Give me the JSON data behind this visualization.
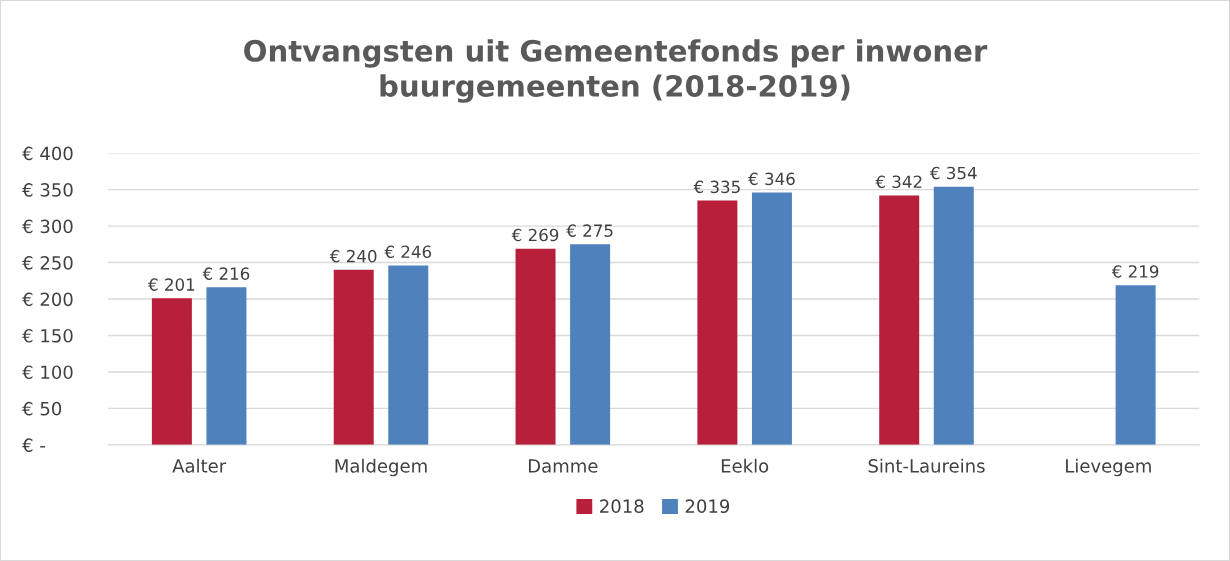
{
  "chart_data": {
    "type": "bar",
    "title": "Ontvangsten uit Gemeentefonds per inwoner\nbuurgemeenten (2018-2019)",
    "categories": [
      "Aalter",
      "Maldegem",
      "Damme",
      "Eeklo",
      "Sint-Laureins",
      "Lievegem"
    ],
    "series": [
      {
        "name": "2018",
        "color": "#b81f3a",
        "values": [
          201,
          240,
          269,
          335,
          342,
          null
        ],
        "value_labels": [
          "€ 201",
          "€ 240",
          "€ 269",
          "€ 335",
          "€ 342",
          null
        ]
      },
      {
        "name": "2019",
        "color": "#4f81bd",
        "values": [
          216,
          246,
          275,
          346,
          354,
          219
        ],
        "value_labels": [
          "€ 216",
          "€ 246",
          "€ 275",
          "€ 346",
          "€ 354",
          "€ 219"
        ]
      }
    ],
    "ylim": [
      0,
      400
    ],
    "yticks": [
      {
        "value": 0,
        "label": "€ -"
      },
      {
        "value": 50,
        "label": "€ 50"
      },
      {
        "value": 100,
        "label": "€ 100"
      },
      {
        "value": 150,
        "label": "€ 150"
      },
      {
        "value": 200,
        "label": "€ 200"
      },
      {
        "value": 250,
        "label": "€ 250"
      },
      {
        "value": 300,
        "label": "€ 300"
      },
      {
        "value": 350,
        "label": "€ 350"
      },
      {
        "value": 400,
        "label": "€ 400"
      }
    ],
    "grid": "y",
    "legend": "bottom"
  }
}
